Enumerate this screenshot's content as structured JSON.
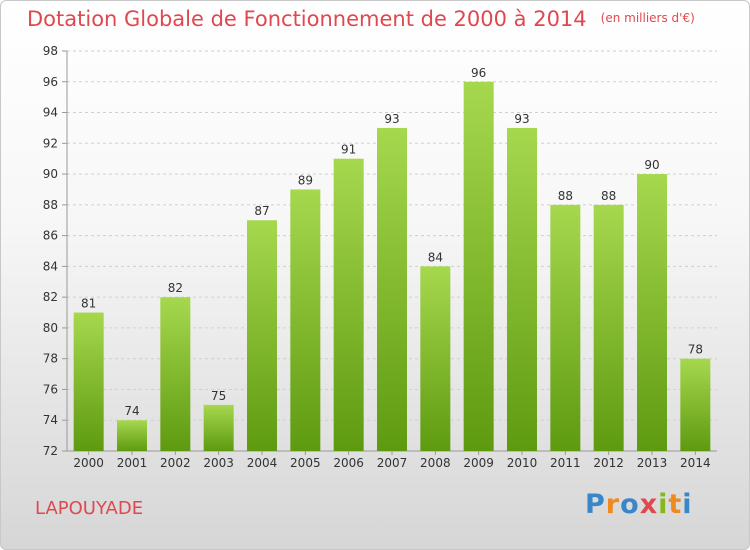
{
  "title": {
    "main": "Dotation Globale de Fonctionnement de 2000 à 2014",
    "unit": "(en milliers d'€)"
  },
  "footer": {
    "commune": "LAPOUYADE",
    "logo_letters": [
      "P",
      "r",
      "o",
      "x",
      "i",
      "t",
      "i"
    ],
    "logo_colors": [
      "#3a86c8",
      "#f08a1c",
      "#3a86c8",
      "#e0484f",
      "#86b81b",
      "#f08a1c",
      "#3a86c8"
    ]
  },
  "colors": {
    "title": "#e0484f",
    "bar_top": "#a6d84e",
    "bar_bottom": "#5e9a10",
    "axis": "#999999",
    "grid": "#d0d0d0",
    "tick_text": "#333333"
  },
  "chart_data": {
    "type": "bar",
    "title": "Dotation Globale de Fonctionnement de 2000 à 2014",
    "subtitle": "(en milliers d'€)",
    "xlabel": "",
    "ylabel": "",
    "categories": [
      "2000",
      "2001",
      "2002",
      "2003",
      "2004",
      "2005",
      "2006",
      "2007",
      "2008",
      "2009",
      "2010",
      "2011",
      "2012",
      "2013",
      "2014"
    ],
    "values": [
      81,
      74,
      82,
      75,
      87,
      89,
      91,
      93,
      84,
      96,
      93,
      88,
      88,
      90,
      78
    ],
    "ylim": [
      72,
      98
    ],
    "yticks": [
      72,
      74,
      76,
      78,
      80,
      82,
      84,
      86,
      88,
      90,
      92,
      94,
      96,
      98
    ],
    "grid": true,
    "data_labels": true
  }
}
